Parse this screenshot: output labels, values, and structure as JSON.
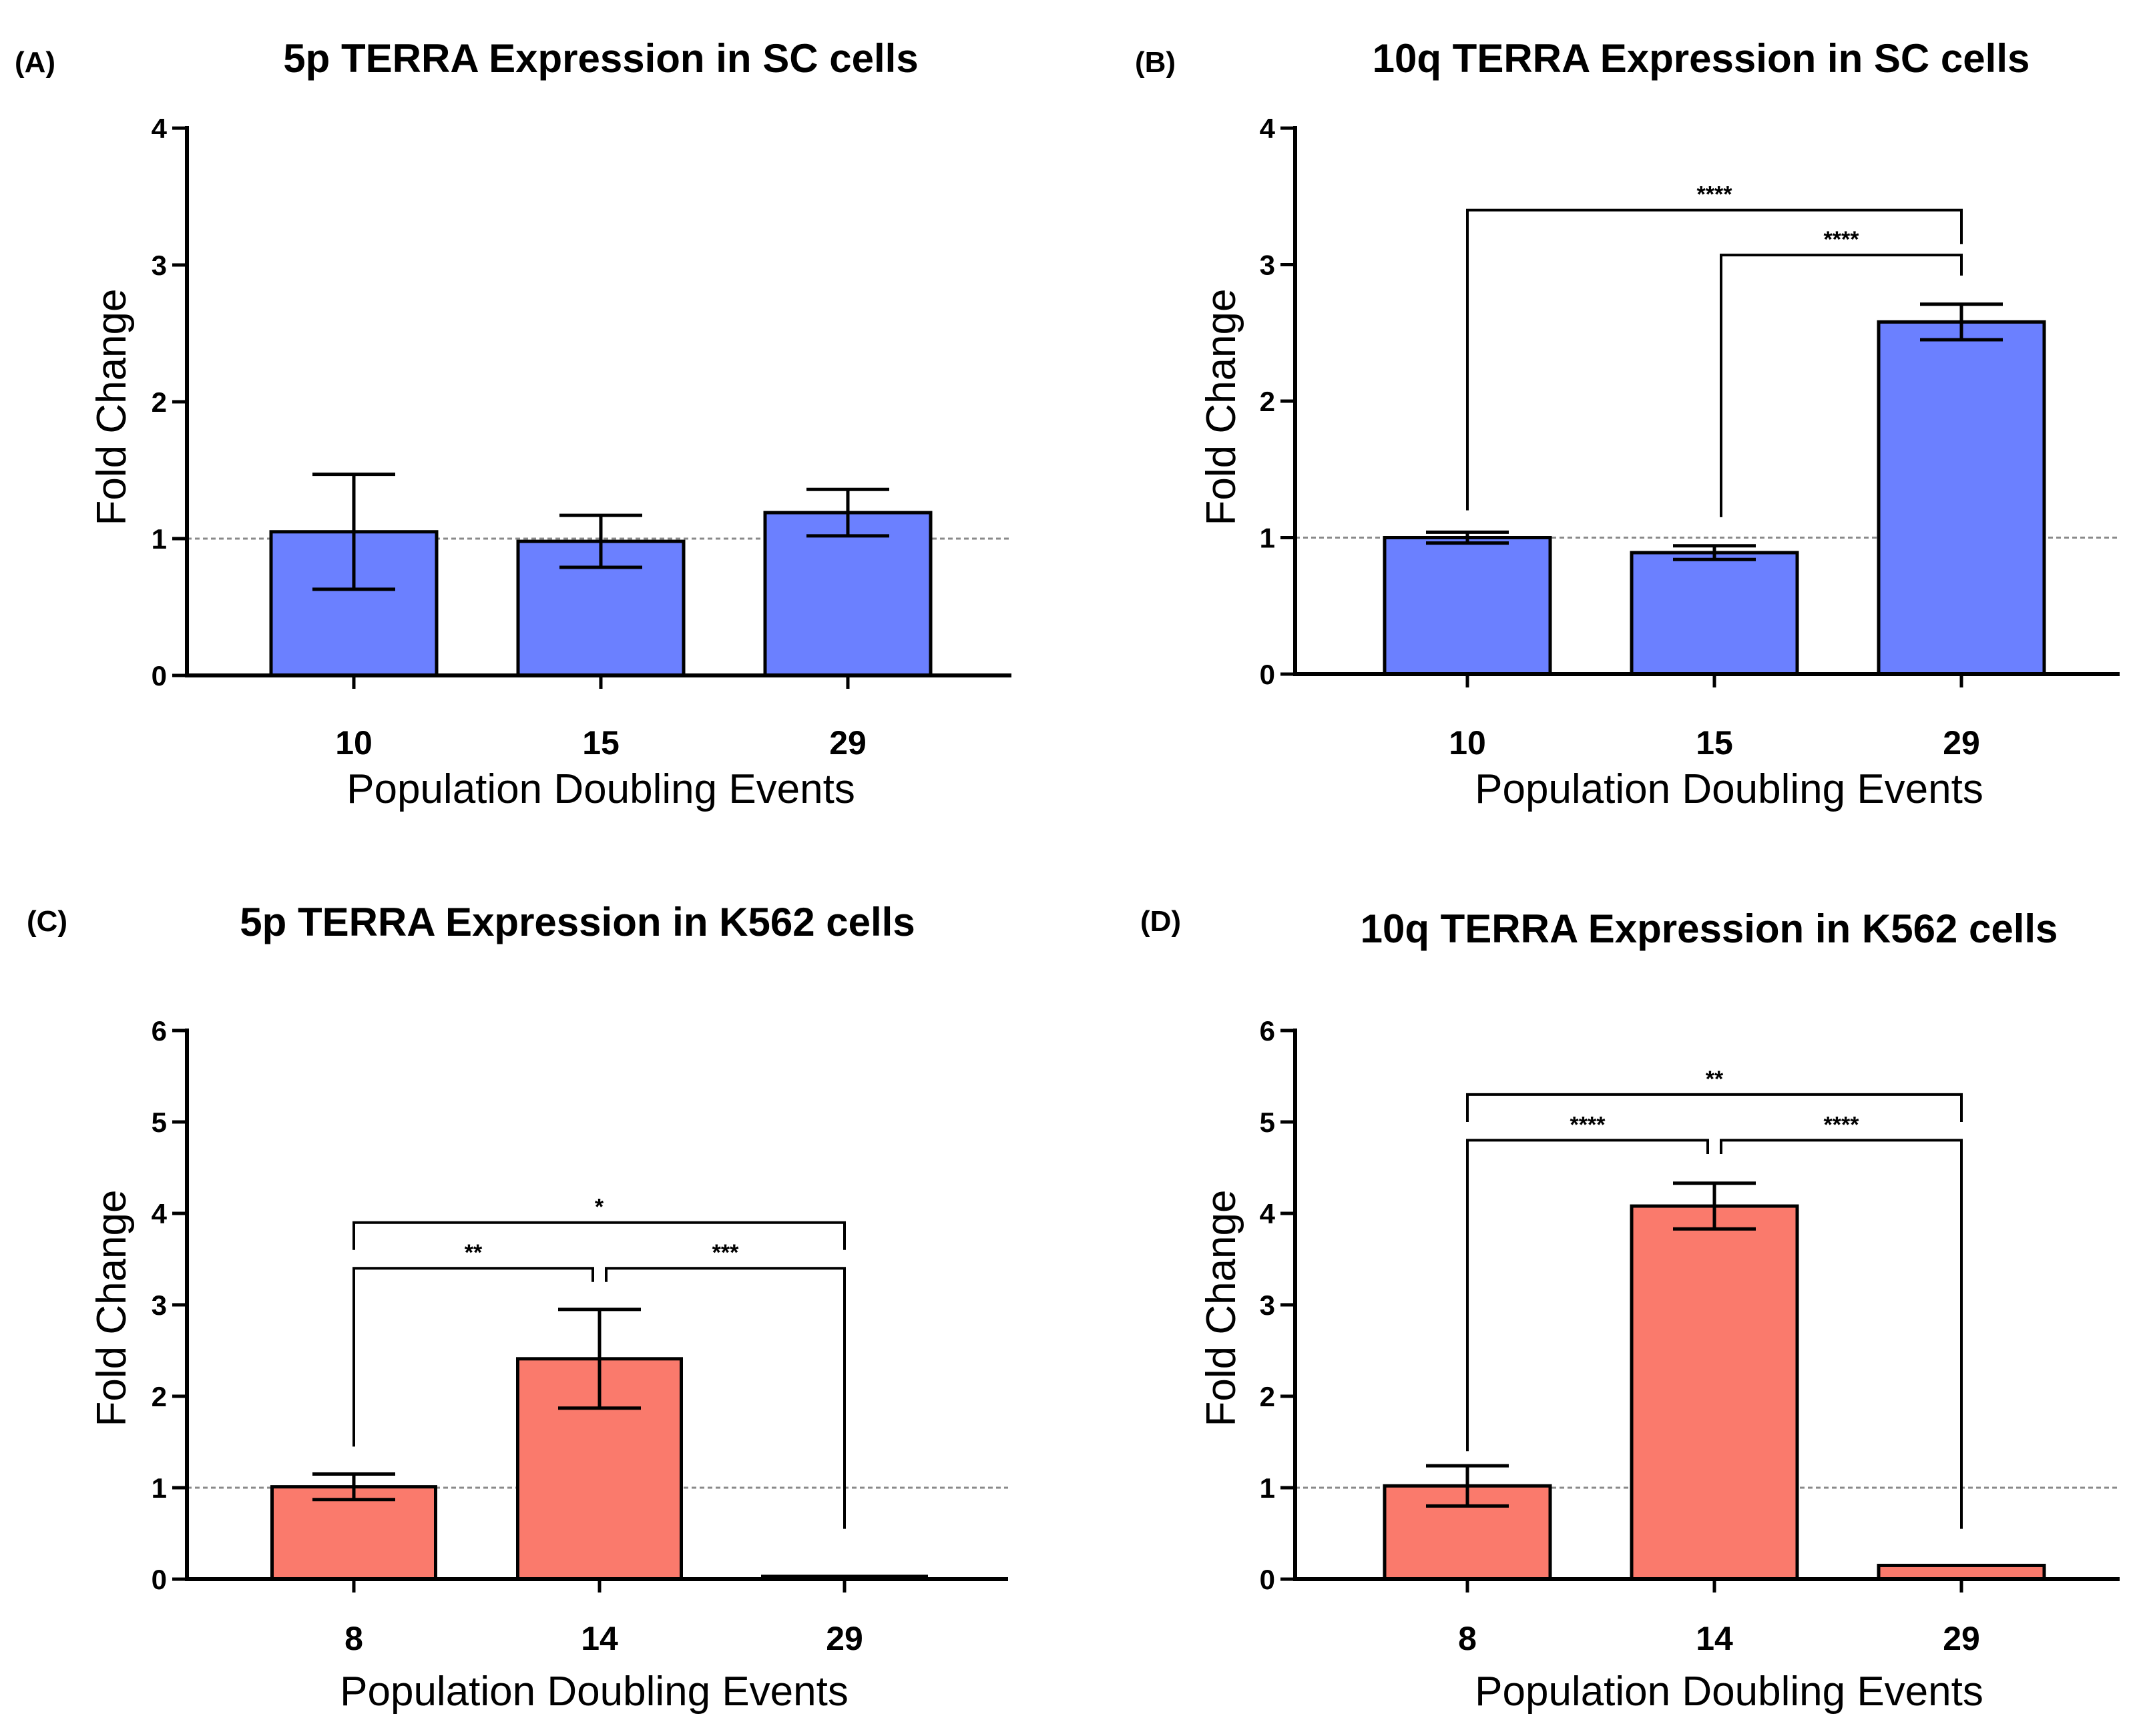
{
  "chart_data": [
    {
      "panel_label": "(A)",
      "title": "5p TERRA Expression in SC cells",
      "type": "bar",
      "categories": [
        "10",
        "15",
        "29"
      ],
      "values": [
        1.05,
        0.98,
        1.19
      ],
      "errors": [
        0.42,
        0.19,
        0.17
      ],
      "ylim": [
        0,
        4
      ],
      "yticks": [
        "0",
        "1",
        "2",
        "3",
        "4"
      ],
      "reference_line": 1,
      "color": "#6b80ff",
      "xlabel": "Population Doubling Events",
      "ylabel": "Fold Change",
      "significance": []
    },
    {
      "panel_label": "(B)",
      "title": "10q TERRA Expression in SC cells",
      "type": "bar",
      "categories": [
        "10",
        "15",
        "29"
      ],
      "values": [
        1.0,
        0.89,
        2.58
      ],
      "errors": [
        0.04,
        0.05,
        0.13
      ],
      "ylim": [
        0,
        4
      ],
      "yticks": [
        "0",
        "1",
        "2",
        "3",
        "4"
      ],
      "reference_line": 1,
      "color": "#6b80ff",
      "xlabel": "Population Doubling Events",
      "ylabel": "Fold Change",
      "significance": [
        {
          "from": 0,
          "to": 2,
          "label": "****",
          "y": 3.4,
          "left_drop": 1.2,
          "right_drop": 3.15
        },
        {
          "from": 1,
          "to": 2,
          "label": "****",
          "y": 3.07,
          "left_drop": 1.15,
          "right_drop": 2.92
        }
      ]
    },
    {
      "panel_label": "(C)",
      "title": "5p TERRA Expression in K562 cells",
      "type": "bar",
      "categories": [
        "8",
        "14",
        "29"
      ],
      "values": [
        1.01,
        2.41,
        0.03
      ],
      "errors": [
        0.14,
        0.54,
        0.0
      ],
      "ylim": [
        0,
        6
      ],
      "yticks": [
        "0",
        "1",
        "2",
        "3",
        "4",
        "5",
        "6"
      ],
      "reference_line": 1,
      "color": "#fa7a6c",
      "xlabel": "Population Doubling Events",
      "ylabel": "Fold Change",
      "significance": [
        {
          "from": 0,
          "to": 2,
          "label": "*",
          "y": 3.9,
          "left_drop": 3.6,
          "right_drop": 3.6
        },
        {
          "from": 0,
          "to": 1,
          "label": "**",
          "y": 3.4,
          "left_drop": 1.45,
          "right_drop": 3.25
        },
        {
          "from": 1,
          "to": 2,
          "label": "***",
          "y": 3.4,
          "left_drop": 3.25,
          "right_drop": 0.55
        }
      ]
    },
    {
      "panel_label": "(D)",
      "title": "10q TERRA Expression in K562 cells",
      "type": "bar",
      "categories": [
        "8",
        "14",
        "29"
      ],
      "values": [
        1.02,
        4.08,
        0.15
      ],
      "errors": [
        0.22,
        0.25,
        0.0
      ],
      "ylim": [
        0,
        6
      ],
      "yticks": [
        "0",
        "1",
        "2",
        "3",
        "4",
        "5",
        "6"
      ],
      "reference_line": 1,
      "color": "#fa7a6c",
      "xlabel": "Population Doubling Events",
      "ylabel": "Fold Change",
      "significance": [
        {
          "from": 0,
          "to": 2,
          "label": "**",
          "y": 5.3,
          "left_drop": 5.0,
          "right_drop": 5.0
        },
        {
          "from": 0,
          "to": 1,
          "label": "****",
          "y": 4.8,
          "left_drop": 1.4,
          "right_drop": 4.65
        },
        {
          "from": 1,
          "to": 2,
          "label": "****",
          "y": 4.8,
          "left_drop": 4.65,
          "right_drop": 0.55
        }
      ]
    }
  ]
}
